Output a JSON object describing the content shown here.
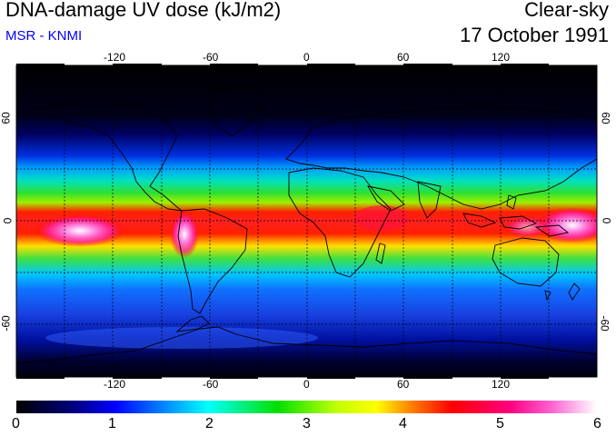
{
  "header": {
    "title": "DNA-damage UV dose (kJ/m2)",
    "subtitle": "MSR - KNMI",
    "condition": "Clear-sky",
    "date": "17 October 1991"
  },
  "map": {
    "lon_ticks": [
      "-120",
      "-60",
      "0",
      "60",
      "120"
    ],
    "lat_ticks": [
      "60",
      "0",
      "-60"
    ],
    "lat_ticks_right": [
      "60",
      "0",
      "-60"
    ]
  },
  "colorbar": {
    "labels": [
      "0",
      "1",
      "2",
      "3",
      "4",
      "5",
      "6"
    ],
    "colors": [
      "#000000",
      "#0000c8",
      "#00b0ff",
      "#00e040",
      "#ffff00",
      "#ff0000",
      "#ff60c0",
      "#ffffff"
    ]
  },
  "colors": {
    "subtitle": "#0000ff",
    "coastline": "#000000",
    "grid": "#000000"
  }
}
